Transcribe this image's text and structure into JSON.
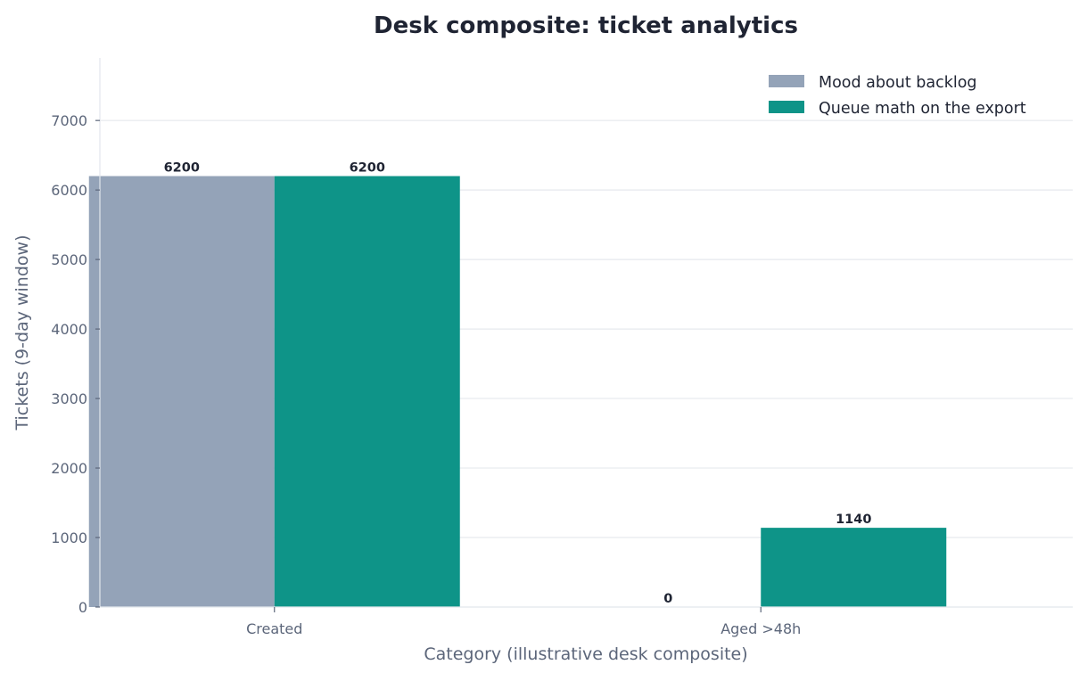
{
  "chart_data": {
    "type": "bar",
    "title": "Desk composite: ticket analytics",
    "xlabel": "Category (illustrative desk composite)",
    "ylabel": "Tickets (9-day window)",
    "categories": [
      "Created",
      "Aged >48h"
    ],
    "series": [
      {
        "name": "Mood about backlog",
        "values": [
          6200,
          0
        ],
        "color": "#94a3b8"
      },
      {
        "name": "Queue math on the export",
        "values": [
          6200,
          1140
        ],
        "color": "#0e9488"
      }
    ],
    "yticks": [
      "0",
      "1000",
      "2000",
      "3000",
      "4000",
      "5000",
      "6000",
      "7000"
    ],
    "ylim": [
      0,
      7900
    ],
    "grid": "horizontal",
    "legend_position": "top-right"
  }
}
